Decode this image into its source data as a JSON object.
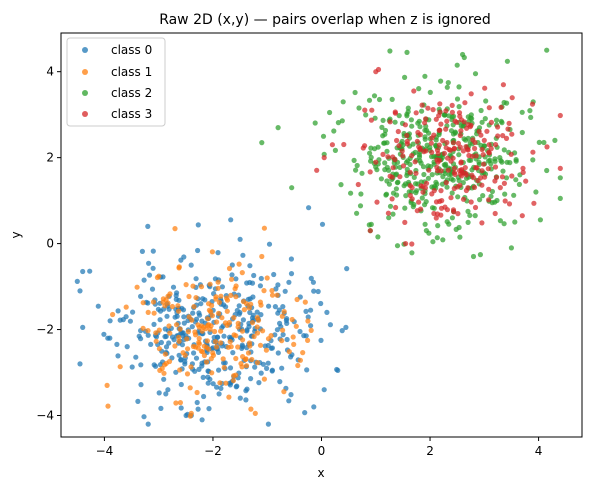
{
  "chart_data": {
    "type": "scatter",
    "title": "Raw 2D (x,y) — pairs overlap when z is ignored",
    "xlabel": "x",
    "ylabel": "y",
    "xlim": [
      -4.8,
      4.8
    ],
    "ylim": [
      -4.5,
      4.9
    ],
    "xticks": [
      -4,
      -2,
      0,
      2,
      4
    ],
    "yticks": [
      -4,
      -2,
      0,
      2,
      4
    ],
    "xtick_labels": [
      "−4",
      "−2",
      "0",
      "2",
      "4"
    ],
    "ytick_labels": [
      "−4",
      "−2",
      "0",
      "2",
      "4"
    ],
    "legend_position": "top-left",
    "series": [
      {
        "name": "class 0",
        "color": "#1f77b4",
        "cluster": {
          "center": [
            -2.0,
            -2.1
          ],
          "std": [
            0.85,
            0.85
          ],
          "count": 380,
          "seed": 11
        },
        "points": [
          [
            -3.2,
            0.4
          ],
          [
            -4.4,
            -0.65
          ],
          [
            -4.45,
            -1.1
          ],
          [
            -4.4,
            -1.95
          ],
          [
            -4.45,
            -2.8
          ],
          [
            -1.5,
            0.1
          ],
          [
            -0.2,
            -1.55
          ],
          [
            0.1,
            -1.6
          ],
          [
            0.45,
            -1.95
          ],
          [
            0.3,
            -2.95
          ],
          [
            0.05,
            -3.4
          ],
          [
            -2.4,
            -4.0
          ],
          [
            -2.2,
            -4.1
          ],
          [
            -3.6,
            -1.7
          ],
          [
            -3.9,
            -2.2
          ],
          [
            -0.6,
            -0.9
          ],
          [
            -0.15,
            -0.9
          ]
        ]
      },
      {
        "name": "class 1",
        "color": "#ff7f0e",
        "cluster": {
          "center": [
            -2.0,
            -2.1
          ],
          "std": [
            0.75,
            0.75
          ],
          "count": 200,
          "seed": 23
        },
        "points": [
          [
            -2.7,
            0.35
          ],
          [
            -3.95,
            -3.3
          ],
          [
            -3.85,
            -1.65
          ],
          [
            -1.0,
            -0.8
          ],
          [
            -1.1,
            -0.3
          ],
          [
            -0.45,
            -1.3
          ],
          [
            -0.25,
            -1.8
          ],
          [
            -2.4,
            -3.95
          ],
          [
            -2.6,
            -3.7
          ],
          [
            -1.3,
            -3.85
          ]
        ]
      },
      {
        "name": "class 2",
        "color": "#2ca02c",
        "cluster": {
          "center": [
            2.2,
            2.0
          ],
          "std": [
            0.8,
            0.8
          ],
          "count": 420,
          "seed": 37
        },
        "points": [
          [
            4.15,
            4.5
          ],
          [
            4.3,
            2.4
          ],
          [
            4.15,
            1.7
          ],
          [
            -0.8,
            2.7
          ],
          [
            -1.1,
            2.35
          ],
          [
            -0.55,
            1.3
          ],
          [
            0.9,
            0.3
          ],
          [
            1.4,
            -0.05
          ],
          [
            2.6,
            4.4
          ],
          [
            2.5,
            4.15
          ],
          [
            3.9,
            3.3
          ],
          [
            3.95,
            1.2
          ],
          [
            0.15,
            3.05
          ],
          [
            0.4,
            3.3
          ],
          [
            3.5,
            -0.1
          ],
          [
            2.8,
            -0.3
          ],
          [
            2.55,
            0.15
          ]
        ]
      },
      {
        "name": "class 3",
        "color": "#d62728",
        "cluster": {
          "center": [
            2.3,
            2.0
          ],
          "std": [
            0.7,
            0.7
          ],
          "count": 230,
          "seed": 53
        },
        "points": [
          [
            1.05,
            4.05
          ],
          [
            1.0,
            4.0
          ],
          [
            1.55,
            0.0
          ],
          [
            0.9,
            0.3
          ],
          [
            1.7,
            3.55
          ],
          [
            3.7,
            0.65
          ],
          [
            3.2,
            0.7
          ],
          [
            0.05,
            2.0
          ],
          [
            0.2,
            2.3
          ]
        ]
      }
    ]
  }
}
